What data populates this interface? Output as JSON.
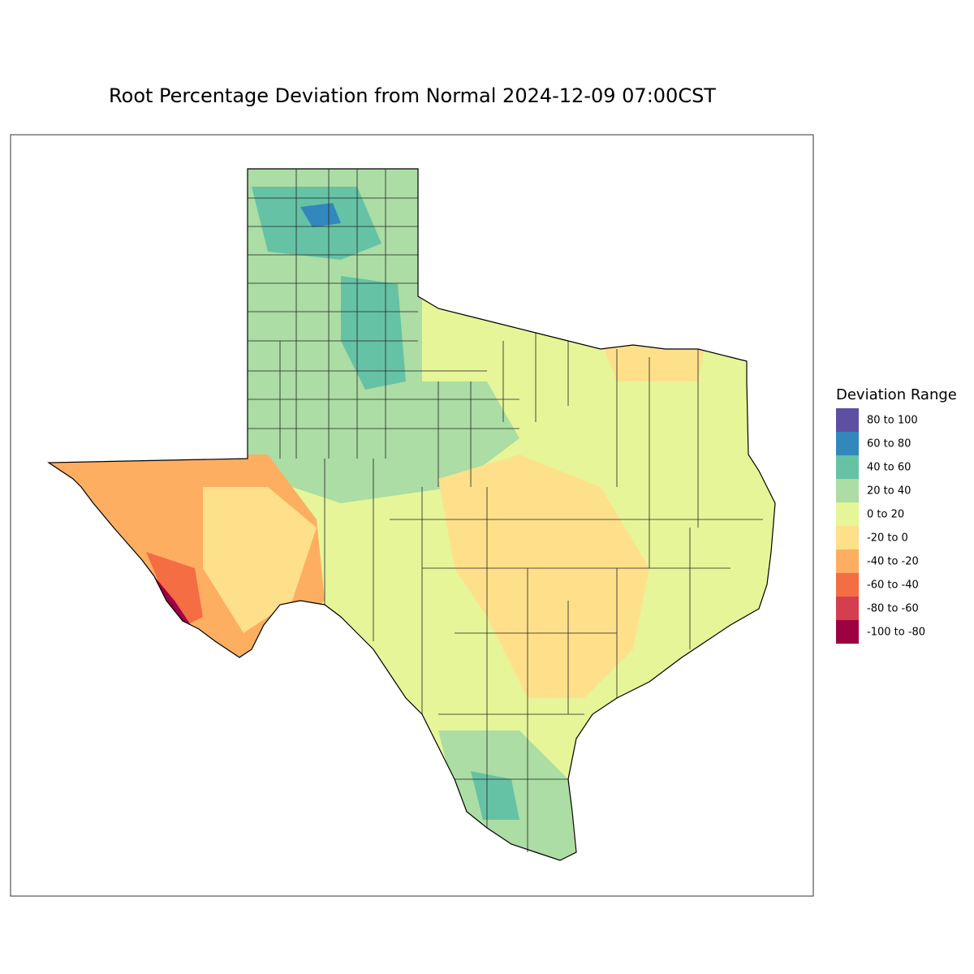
{
  "header": {
    "title": "Root Percentage Deviation from Normal  2024-12-09 07:00CST"
  },
  "legend": {
    "title": "Deviation Range",
    "items": [
      {
        "label": "80 to 100",
        "color": "#5E4FA2"
      },
      {
        "label": "60 to 80",
        "color": "#3288BD"
      },
      {
        "label": "40 to 60",
        "color": "#66C2A5"
      },
      {
        "label": "20 to 40",
        "color": "#ABDDA4"
      },
      {
        "label": "0 to 20",
        "color": "#E6F598"
      },
      {
        "label": "-20 to 0",
        "color": "#FEE08B"
      },
      {
        "label": "-40 to -20",
        "color": "#FDAE61"
      },
      {
        "label": "-60 to -40",
        "color": "#F46D43"
      },
      {
        "label": "-80 to -60",
        "color": "#D53E4F"
      },
      {
        "label": "-100 to -80",
        "color": "#9E0142"
      }
    ]
  }
}
